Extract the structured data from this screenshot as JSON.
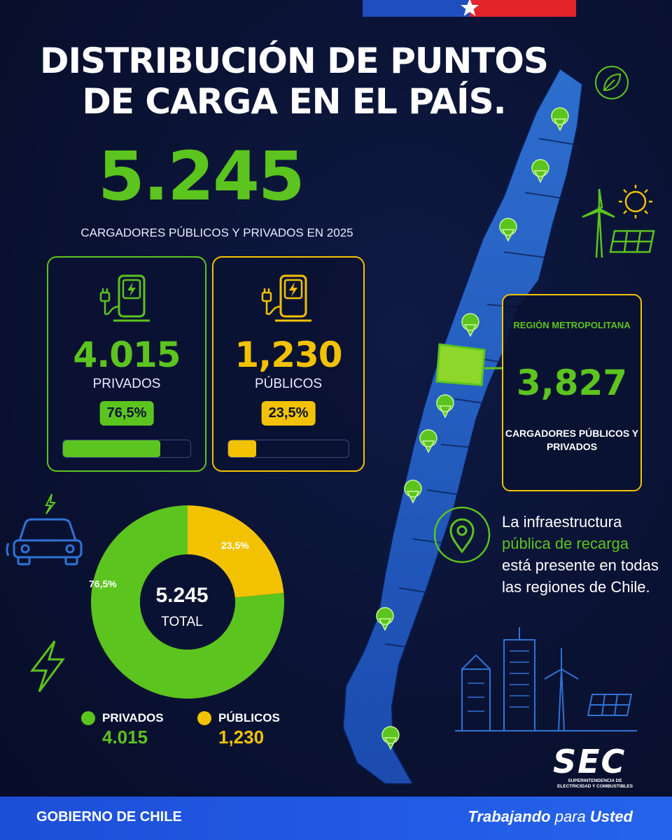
{
  "title": "DISTRIBUCIÓN DE PUNTOS DE CARGA EN EL PAÍS.",
  "total": {
    "value": "5.245",
    "caption": "CARGADORES PÚBLICOS Y PRIVADOS EN 2025"
  },
  "private_card": {
    "value": "4.015",
    "label": "PRIVADOS",
    "percent": "76,5%",
    "fill_fraction": 0.765,
    "color": "#5cc41e",
    "icon": "ev-charger-icon"
  },
  "public_card": {
    "value": "1,230",
    "label": "PÚBLICOS",
    "percent": "23,5%",
    "fill_fraction": 0.235,
    "color": "#f2c200",
    "icon": "ev-charger-icon"
  },
  "region_card": {
    "title": "REGIÓN METROPOLITANA",
    "value": "3,827",
    "description": "CARGADORES PÚBLICOS Y PRIVADOS"
  },
  "info": {
    "line_before": "La infraestructura",
    "highlight": "pública de recarga",
    "line_after": "está presente en todas las regiones de Chile."
  },
  "chart_data": {
    "type": "pie",
    "variant": "donut",
    "categories": [
      "PRIVADOS",
      "PÚBLICOS"
    ],
    "values": [
      76.5,
      23.5
    ],
    "labels": [
      "76,5%",
      "23,5%"
    ],
    "colors": [
      "#5cc41e",
      "#f2c200"
    ],
    "center_value": "5.245",
    "center_label": "TOTAL"
  },
  "legend": [
    {
      "name": "PRIVADOS",
      "value": "4.015",
      "color": "#5cc41e"
    },
    {
      "name": "PÚBLICOS",
      "value": "1,230",
      "color": "#f2c200"
    }
  ],
  "logo": {
    "text": "SEC",
    "subtitle": "SUPERINTENDENCIA DE ELECTRICIDAD Y COMBUSTIBLES"
  },
  "footer": {
    "left": "GOBIERNO DE CHILE",
    "right_bold_1": "Trabajando",
    "right_light": "para",
    "right_bold_2": "Usted"
  },
  "colors": {
    "background": "#0a1233",
    "green": "#5cc41e",
    "yellow": "#f2c200",
    "footer": "#2563eb"
  }
}
